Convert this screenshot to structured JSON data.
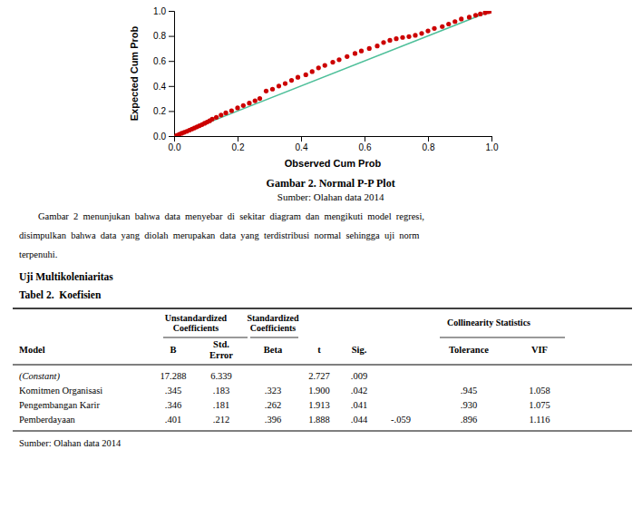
{
  "chart_data": {
    "type": "scatter",
    "title": "Gambar 2. Normal P-P Plot",
    "subtitle": "Sumber: Olahan data 2014",
    "xlabel": "Observed Cum Prob",
    "ylabel": "Expected Cum Prob",
    "color": "#cc0000",
    "x": [
      0.008,
      0.016,
      0.024,
      0.032,
      0.04,
      0.048,
      0.056,
      0.064,
      0.072,
      0.08,
      0.088,
      0.096,
      0.104,
      0.112,
      0.12,
      0.133,
      0.148,
      0.163,
      0.181,
      0.2,
      0.218,
      0.237,
      0.255,
      0.27,
      0.29,
      0.31,
      0.33,
      0.35,
      0.37,
      0.39,
      0.415,
      0.435,
      0.455,
      0.475,
      0.5,
      0.52,
      0.545,
      0.57,
      0.59,
      0.615,
      0.64,
      0.66,
      0.68,
      0.7,
      0.72,
      0.74,
      0.76,
      0.78,
      0.8,
      0.82,
      0.845,
      0.865,
      0.885,
      0.905,
      0.93,
      0.95,
      0.965,
      0.98,
      0.99,
      0.998
    ],
    "values": [
      0.005,
      0.013,
      0.022,
      0.03,
      0.038,
      0.047,
      0.056,
      0.065,
      0.074,
      0.083,
      0.092,
      0.102,
      0.112,
      0.122,
      0.135,
      0.15,
      0.168,
      0.185,
      0.203,
      0.225,
      0.244,
      0.263,
      0.282,
      0.3,
      0.36,
      0.375,
      0.4,
      0.42,
      0.445,
      0.47,
      0.49,
      0.515,
      0.545,
      0.565,
      0.59,
      0.61,
      0.635,
      0.66,
      0.68,
      0.7,
      0.72,
      0.748,
      0.765,
      0.778,
      0.788,
      0.795,
      0.805,
      0.82,
      0.84,
      0.86,
      0.875,
      0.895,
      0.915,
      0.935,
      0.95,
      0.965,
      0.975,
      0.985,
      0.993,
      0.998
    ],
    "reference_line": {
      "x": [
        0,
        1
      ],
      "values": [
        0,
        1
      ],
      "color": "#4dbf99"
    },
    "xlim": [
      0.0,
      1.0
    ],
    "ylim": [
      0.0,
      1.0
    ],
    "xticks": [
      {
        "value": 0.0,
        "label": "0.0"
      },
      0.2,
      0.4,
      0.6,
      0.8,
      {
        "value": 1.0,
        "label": "1.0"
      }
    ],
    "yticks": [
      {
        "value": 0.0,
        "label": "0.0"
      },
      0.2,
      0.4,
      0.6,
      0.8,
      {
        "value": 1.0,
        "label": "1.0"
      }
    ],
    "grid": false,
    "body": [
      "        Gambar  2  menunjukan  bahwa  data  menyebar  di  sekitar  diagram  dan  mengikuti  model  regresi,",
      "disimpulkan  bahwa  data  yang  diolah  merupakan  data  yang  terdistribusi  normal  sehingga  uji  norm",
      "terpenuhi."
    ],
    "sections": [
      "Uji Multikoleniaritas",
      "Tabel 2.  Koefisien"
    ],
    "table": {
      "group_headers": [
        [
          "Unstandardized",
          "Coefficients"
        ],
        [
          "Standardized",
          "Coefficients"
        ],
        [
          "Collinearity Statistics"
        ]
      ],
      "columns": [
        [
          "Model"
        ],
        [
          "B"
        ],
        [
          "Std.",
          "Error"
        ],
        [
          "Beta"
        ],
        [
          "t"
        ],
        [
          "Sig."
        ],
        null,
        [
          "Tolerance"
        ],
        [
          "VIF"
        ]
      ],
      "rows": [
        [
          "(Constant)",
          "17.288",
          "6.339",
          null,
          "2.727",
          ".009",
          null,
          null,
          null
        ],
        [
          "Komitmen Organisasi",
          ".345",
          ".183",
          ".323",
          "1.900",
          ".042",
          null,
          ".945",
          "1.058"
        ],
        [
          "Pengembangan Karir",
          ".346",
          ".181",
          ".262",
          "1.913",
          ".041",
          null,
          ".930",
          "1.075"
        ],
        [
          "Pemberdayaan",
          ".401",
          ".212",
          ".396",
          "1.888",
          ".044",
          "-.059",
          ".896",
          "1.116"
        ]
      ],
      "footer": "Sumber: Olahan data 2014"
    }
  }
}
